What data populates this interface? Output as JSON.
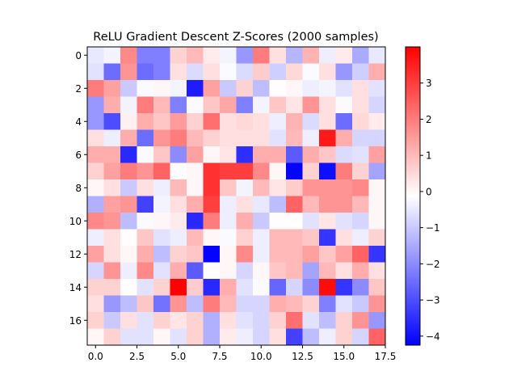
{
  "chart_data": {
    "type": "heatmap",
    "title": "ReLU Gradient Descent Z-Scores (2000 samples)",
    "xlabel": "",
    "ylabel": "",
    "rows": 18,
    "cols": 18,
    "x_ticks": [
      0.0,
      2.5,
      5.0,
      7.5,
      10.0,
      12.5,
      15.0,
      17.5
    ],
    "x_tick_labels": [
      "0.0",
      "2.5",
      "5.0",
      "7.5",
      "10.0",
      "12.5",
      "15.0",
      "17.5"
    ],
    "y_ticks": [
      0,
      2,
      4,
      6,
      8,
      10,
      12,
      14,
      16
    ],
    "y_tick_labels": [
      "0",
      "2",
      "4",
      "6",
      "8",
      "10",
      "12",
      "14",
      "16"
    ],
    "colormap": "bwr",
    "vmin": -4.25,
    "vmax": 4.0,
    "colorbar_ticks": [
      3,
      2,
      1,
      0,
      -1,
      -2,
      -3,
      -4
    ],
    "colorbar_tick_labels": [
      "3",
      "2",
      "1",
      "0",
      "−1",
      "−2",
      "−3",
      "−4"
    ],
    "values": [
      [
        -0.5,
        -0.3,
        1.8,
        -2.2,
        -2.2,
        0.6,
        1.0,
        0.2,
        -0.3,
        -1.8,
        2.0,
        0.4,
        -1.3,
        1.1,
        -0.4,
        0.2,
        -1.5,
        -0.5
      ],
      [
        -0.6,
        -2.5,
        1.6,
        -2.5,
        -2.2,
        0.4,
        -0.7,
        0.4,
        -0.2,
        -0.7,
        0.7,
        -0.9,
        0.5,
        -0.2,
        0.4,
        -1.8,
        -0.9,
        1.2
      ],
      [
        2.0,
        1.4,
        -1.0,
        -0.2,
        0.0,
        -0.3,
        -3.8,
        1.4,
        -1.0,
        0.6,
        -1.2,
        -0.1,
        0.0,
        -0.4,
        -0.3,
        -0.6,
        0.4,
        -0.6
      ],
      [
        -1.8,
        1.2,
        -0.3,
        2.0,
        1.0,
        -2.2,
        -0.2,
        0.8,
        1.3,
        -2.2,
        -0.3,
        0.8,
        0.3,
        1.6,
        0.4,
        -0.2,
        0.4,
        -0.8
      ],
      [
        -1.8,
        -3.0,
        0.1,
        1.2,
        0.8,
        1.5,
        0.6,
        2.2,
        0.4,
        0.5,
        0.4,
        -0.4,
        1.1,
        -0.7,
        0.4,
        -2.5,
        0.5,
        0.2
      ],
      [
        0.4,
        -0.4,
        1.2,
        -2.5,
        1.6,
        2.0,
        1.0,
        0.6,
        0.4,
        0.4,
        0.4,
        -0.6,
        1.0,
        -0.4,
        3.6,
        1.2,
        -0.8,
        -0.8
      ],
      [
        1.2,
        1.2,
        -3.6,
        -0.2,
        0.8,
        -2.0,
        1.4,
        0.0,
        0.3,
        -3.5,
        1.2,
        1.2,
        -2.8,
        1.2,
        0.8,
        -0.7,
        -0.6,
        1.4
      ],
      [
        0.6,
        1.4,
        2.0,
        1.6,
        2.4,
        -0.1,
        0.0,
        3.2,
        3.0,
        3.0,
        1.8,
        0.0,
        -4.2,
        0.6,
        -4.0,
        2.0,
        0.6,
        -1.6
      ],
      [
        0.0,
        0.4,
        -1.0,
        0.4,
        -0.4,
        1.0,
        0.0,
        3.2,
        0.8,
        -0.3,
        1.0,
        0.3,
        0.7,
        1.6,
        1.6,
        1.6,
        1.8,
        0.0
      ],
      [
        -1.4,
        1.4,
        1.6,
        -3.2,
        -0.3,
        0.4,
        1.2,
        3.0,
        -0.4,
        0.4,
        -0.5,
        -1.2,
        2.4,
        1.0,
        1.6,
        1.6,
        1.0,
        0.0
      ],
      [
        1.8,
        1.6,
        -1.2,
        -0.2,
        0.0,
        0.2,
        -3.6,
        2.0,
        -0.4,
        1.2,
        -1.0,
        -0.1,
        -0.1,
        -0.6,
        0.3,
        -0.6,
        -0.8,
        0.0
      ],
      [
        -0.4,
        0.4,
        -0.1,
        0.8,
        -0.6,
        -0.4,
        1.0,
        0.0,
        -0.2,
        0.6,
        -0.4,
        1.0,
        1.0,
        0.8,
        -3.4,
        0.4,
        -0.4,
        0.6
      ],
      [
        1.4,
        0.4,
        0.0,
        1.2,
        -1.2,
        0.6,
        0.8,
        -4.2,
        0.0,
        1.8,
        -0.4,
        1.0,
        1.0,
        1.4,
        0.8,
        1.4,
        2.4,
        -3.4
      ],
      [
        -0.8,
        1.6,
        -0.4,
        1.8,
        -0.6,
        1.2,
        -2.8,
        -0.1,
        0.0,
        -0.8,
        0.0,
        0.8,
        1.0,
        -1.6,
        1.0,
        0.4,
        1.2,
        0.4
      ],
      [
        0.6,
        0.6,
        -0.1,
        -0.6,
        0.6,
        4.0,
        0.7,
        -3.6,
        1.2,
        -0.6,
        -0.2,
        -2.6,
        -0.8,
        -2.0,
        3.8,
        -3.4,
        -2.0,
        0.8
      ],
      [
        0.4,
        -1.8,
        -1.2,
        0.8,
        -2.4,
        1.6,
        -1.2,
        2.0,
        1.0,
        -0.8,
        -0.8,
        1.2,
        1.0,
        0.6,
        -2.2,
        -0.6,
        -1.0,
        1.6
      ],
      [
        0.6,
        -1.0,
        0.4,
        -0.6,
        0.6,
        0.3,
        0.6,
        -1.4,
        0.4,
        -0.6,
        -0.8,
        0.6,
        2.2,
        -0.6,
        -1.2,
        0.6,
        1.6,
        -1.8
      ],
      [
        0.0,
        0.6,
        -0.6,
        -0.6,
        0.0,
        -0.6,
        0.6,
        -1.4,
        0.2,
        -0.4,
        -0.8,
        0.4,
        -3.2,
        -1.2,
        -0.4,
        0.6,
        -0.8,
        2.4
      ]
    ]
  }
}
